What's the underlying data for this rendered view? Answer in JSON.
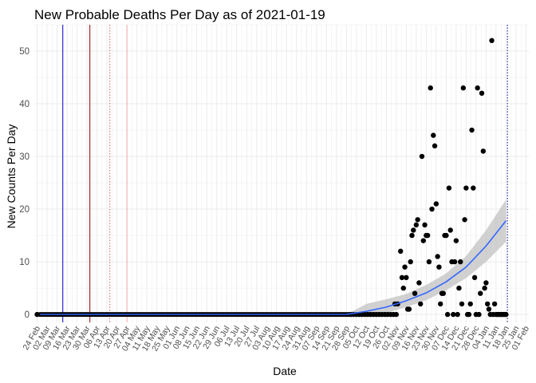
{
  "chart_data": {
    "type": "scatter",
    "title": "New Probable Deaths Per Day as of 2021-01-19",
    "xlabel": "Date",
    "ylabel": "New Counts Per Day",
    "ylim": [
      -1.5,
      55
    ],
    "xlim": [
      "2020-02-22",
      "2021-02-03"
    ],
    "y_ticks": [
      0,
      10,
      20,
      30,
      40,
      50
    ],
    "x_tick_dates": [
      "2020-02-24",
      "2020-03-02",
      "2020-03-09",
      "2020-03-16",
      "2020-03-23",
      "2020-03-30",
      "2020-04-06",
      "2020-04-13",
      "2020-04-20",
      "2020-04-27",
      "2020-05-04",
      "2020-05-11",
      "2020-05-18",
      "2020-05-25",
      "2020-06-01",
      "2020-06-08",
      "2020-06-15",
      "2020-06-22",
      "2020-06-29",
      "2020-07-06",
      "2020-07-13",
      "2020-07-20",
      "2020-07-27",
      "2020-08-03",
      "2020-08-10",
      "2020-08-17",
      "2020-08-24",
      "2020-08-31",
      "2020-09-07",
      "2020-09-14",
      "2020-09-21",
      "2020-09-28",
      "2020-10-05",
      "2020-10-12",
      "2020-10-19",
      "2020-10-26",
      "2020-11-02",
      "2020-11-09",
      "2020-11-16",
      "2020-11-23",
      "2020-11-30",
      "2020-12-07",
      "2020-12-14",
      "2020-12-21",
      "2020-12-28",
      "2021-01-04",
      "2021-01-11",
      "2021-01-18",
      "2021-01-25",
      "2021-02-01"
    ],
    "x_tick_labels": [
      "24 Feb",
      "02 Mar",
      "09 Mar",
      "16 Mar",
      "23 Mar",
      "30 Mar",
      "06 Apr",
      "13 Apr",
      "20 Apr",
      "27 Apr",
      "04 May",
      "11 May",
      "18 May",
      "25 May",
      "01 Jun",
      "08 Jun",
      "15 Jun",
      "22 Jun",
      "29 Jun",
      "06 Jul",
      "13 Jul",
      "20 Jul",
      "27 Jul",
      "03 Aug",
      "10 Aug",
      "17 Aug",
      "24 Aug",
      "31 Aug",
      "07 Sep",
      "14 Sep",
      "21 Sep",
      "28 Sep",
      "05 Oct",
      "12 Oct",
      "19 Oct",
      "26 Oct",
      "02 Nov",
      "09 Nov",
      "16 Nov",
      "23 Nov",
      "30 Nov",
      "07 Dec",
      "14 Dec",
      "21 Dec",
      "28 Dec",
      "04 Jan",
      "11 Jan",
      "18 Jan",
      "25 Jan",
      "01 Feb"
    ],
    "vertical_lines": [
      {
        "date": "2020-03-13",
        "color": "#0000cc",
        "style": "solid"
      },
      {
        "date": "2020-04-01",
        "color": "#8b0000",
        "style": "solid"
      },
      {
        "date": "2020-04-15",
        "color": "#cd5c5c",
        "style": "dotted"
      },
      {
        "date": "2020-04-27",
        "color": "#f4a9a9",
        "style": "solid"
      },
      {
        "date": "2021-01-19",
        "color": "#00008b",
        "style": "dotted"
      }
    ],
    "zero_run": {
      "start": "2020-02-26",
      "end": "2020-09-30",
      "value": 0
    },
    "points": [
      [
        "2020-02-24",
        0
      ],
      [
        "2020-10-01",
        0
      ],
      [
        "2020-10-03",
        0
      ],
      [
        "2020-10-05",
        0
      ],
      [
        "2020-10-07",
        0
      ],
      [
        "2020-10-09",
        0
      ],
      [
        "2020-10-11",
        0
      ],
      [
        "2020-10-13",
        0
      ],
      [
        "2020-10-15",
        0
      ],
      [
        "2020-10-17",
        0
      ],
      [
        "2020-10-19",
        0
      ],
      [
        "2020-10-21",
        0
      ],
      [
        "2020-10-23",
        0
      ],
      [
        "2020-10-25",
        0
      ],
      [
        "2020-10-27",
        0
      ],
      [
        "2020-10-29",
        0
      ],
      [
        "2020-10-31",
        0
      ],
      [
        "2020-11-02",
        0
      ],
      [
        "2020-11-01",
        2
      ],
      [
        "2020-11-03",
        2
      ],
      [
        "2020-11-05",
        12
      ],
      [
        "2020-11-06",
        7
      ],
      [
        "2020-11-07",
        5
      ],
      [
        "2020-11-08",
        9
      ],
      [
        "2020-11-09",
        7
      ],
      [
        "2020-11-10",
        1
      ],
      [
        "2020-11-11",
        1
      ],
      [
        "2020-11-12",
        10
      ],
      [
        "2020-11-13",
        15
      ],
      [
        "2020-11-14",
        16
      ],
      [
        "2020-11-15",
        4
      ],
      [
        "2020-11-16",
        17
      ],
      [
        "2020-11-17",
        18
      ],
      [
        "2020-11-18",
        6
      ],
      [
        "2020-11-19",
        2
      ],
      [
        "2020-11-20",
        30
      ],
      [
        "2020-11-21",
        14
      ],
      [
        "2020-11-22",
        17
      ],
      [
        "2020-11-23",
        15
      ],
      [
        "2020-11-24",
        15
      ],
      [
        "2020-11-25",
        10
      ],
      [
        "2020-11-26",
        43
      ],
      [
        "2020-11-27",
        20
      ],
      [
        "2020-11-28",
        34
      ],
      [
        "2020-11-29",
        32
      ],
      [
        "2020-11-30",
        21
      ],
      [
        "2020-12-01",
        11
      ],
      [
        "2020-12-02",
        9
      ],
      [
        "2020-12-03",
        2
      ],
      [
        "2020-12-04",
        4
      ],
      [
        "2020-12-05",
        4
      ],
      [
        "2020-12-06",
        15
      ],
      [
        "2020-12-07",
        15
      ],
      [
        "2020-12-08",
        0
      ],
      [
        "2020-12-09",
        24
      ],
      [
        "2020-12-10",
        16
      ],
      [
        "2020-12-11",
        10
      ],
      [
        "2020-12-12",
        0
      ],
      [
        "2020-12-13",
        10
      ],
      [
        "2020-12-14",
        14
      ],
      [
        "2020-12-15",
        0
      ],
      [
        "2020-12-16",
        5
      ],
      [
        "2020-12-17",
        10
      ],
      [
        "2020-12-18",
        2
      ],
      [
        "2020-12-19",
        43
      ],
      [
        "2020-12-20",
        18
      ],
      [
        "2020-12-21",
        24
      ],
      [
        "2020-12-22",
        0
      ],
      [
        "2020-12-23",
        0
      ],
      [
        "2020-12-24",
        2
      ],
      [
        "2020-12-25",
        35
      ],
      [
        "2020-12-26",
        24
      ],
      [
        "2020-12-27",
        7
      ],
      [
        "2020-12-28",
        0
      ],
      [
        "2020-12-29",
        43
      ],
      [
        "2020-12-30",
        0
      ],
      [
        "2020-12-31",
        4
      ],
      [
        "2021-01-01",
        42
      ],
      [
        "2021-01-02",
        31
      ],
      [
        "2021-01-03",
        5
      ],
      [
        "2021-01-04",
        6
      ],
      [
        "2021-01-05",
        2
      ],
      [
        "2021-01-06",
        1
      ],
      [
        "2021-01-07",
        0
      ],
      [
        "2021-01-08",
        52
      ],
      [
        "2021-01-09",
        0
      ],
      [
        "2021-01-10",
        2
      ],
      [
        "2021-01-11",
        0
      ],
      [
        "2021-01-12",
        0
      ],
      [
        "2021-01-13",
        0
      ],
      [
        "2021-01-14",
        0
      ],
      [
        "2021-01-15",
        0
      ],
      [
        "2021-01-16",
        0
      ],
      [
        "2021-01-17",
        0
      ],
      [
        "2021-01-18",
        0
      ]
    ],
    "smooth": {
      "start": "2020-09-28",
      "end": "2021-01-18",
      "x_offsets_days": [
        0,
        14,
        28,
        42,
        56,
        70,
        84,
        98,
        112
      ],
      "fit": [
        0,
        0.6,
        1.4,
        2.6,
        4.1,
        6.2,
        9.0,
        13.0,
        17.8
      ],
      "lower": [
        0,
        -0.2,
        0.3,
        1.4,
        2.7,
        4.6,
        6.9,
        10.0,
        13.8
      ],
      "upper": [
        0,
        2.0,
        2.9,
        3.9,
        5.6,
        7.8,
        11.1,
        16.0,
        21.8
      ],
      "line_color": "#3366ff",
      "band_color": "#bdbdbd"
    },
    "colors": {
      "points": "#000000",
      "grid": "#ebebeb",
      "tick_text": "#4d4d4d"
    },
    "grid": true,
    "legend": "none"
  }
}
